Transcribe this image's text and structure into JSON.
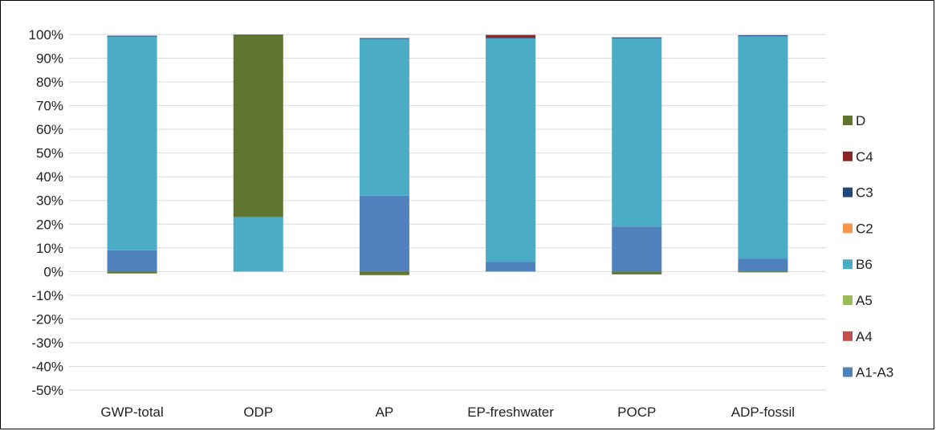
{
  "chart_data": {
    "type": "bar",
    "stacked": true,
    "percent_axis": true,
    "categories": [
      "GWP-total",
      "ODP",
      "AP",
      "EP-freshwater",
      "POCP",
      "ADP-fossil"
    ],
    "ylim": [
      -50,
      100
    ],
    "yticks": [
      -50,
      -40,
      -30,
      -20,
      -10,
      0,
      10,
      20,
      30,
      40,
      50,
      60,
      70,
      80,
      90,
      100
    ],
    "ytick_labels": [
      "-50%",
      "-40%",
      "-30%",
      "-20%",
      "-10%",
      "0%",
      "10%",
      "20%",
      "30%",
      "40%",
      "50%",
      "60%",
      "70%",
      "80%",
      "90%",
      "100%"
    ],
    "grid": true,
    "legend_position": "right",
    "series": [
      {
        "name": "A1-A3",
        "color": "#4F81BD",
        "values": [
          9,
          0,
          32,
          4,
          19,
          5.5
        ]
      },
      {
        "name": "A4",
        "color": "#C0504D",
        "values": [
          0,
          0,
          0,
          0,
          0,
          0
        ]
      },
      {
        "name": "A5",
        "color": "#9BBB59",
        "values": [
          0,
          0,
          0,
          0,
          0,
          0
        ]
      },
      {
        "name": "B6",
        "color": "#4BACC6",
        "values": [
          90.3,
          23,
          66.2,
          94.5,
          79.5,
          94
        ]
      },
      {
        "name": "C2",
        "color": "#F79646",
        "values": [
          0,
          0,
          0,
          0,
          0,
          0
        ]
      },
      {
        "name": "C3",
        "color": "#1F497D",
        "values": [
          0.2,
          0,
          0.3,
          0.3,
          0.3,
          0.2
        ]
      },
      {
        "name": "C4",
        "color": "#8B2525",
        "values": [
          0,
          0,
          0,
          1,
          0,
          0
        ]
      },
      {
        "name": "D",
        "color": "#5F7530",
        "values": [
          -0.8,
          77,
          -1.5,
          0,
          -1.2,
          -0.3
        ]
      }
    ],
    "legend_order": [
      "D",
      "C4",
      "C3",
      "C2",
      "B6",
      "A5",
      "A4",
      "A1-A3"
    ]
  }
}
